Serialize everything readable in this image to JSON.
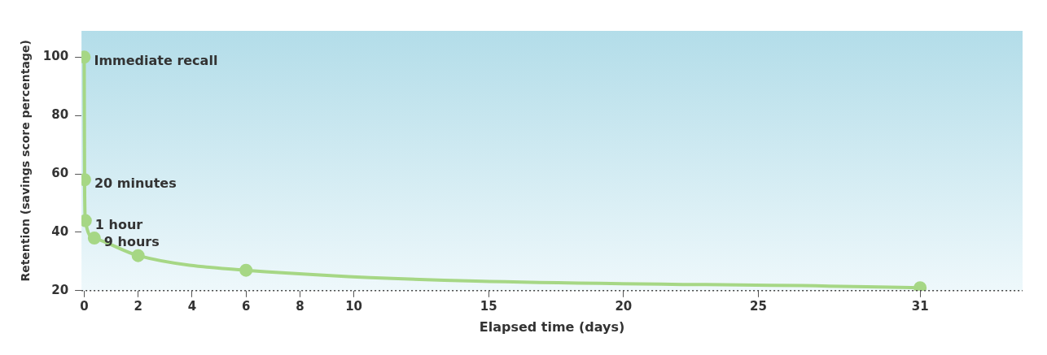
{
  "chart_data": {
    "type": "line",
    "xlabel": "Elapsed time (days)",
    "ylabel": "Retention (savings score percentage)",
    "x": [
      0,
      0.014,
      0.042,
      0.375,
      2,
      6,
      31
    ],
    "series": [
      {
        "color": "#a6d785",
        "values": [
          100,
          58,
          44,
          38,
          32,
          27,
          21
        ]
      }
    ],
    "xlim": [
      -0.1,
      34.8
    ],
    "xticks": [
      0,
      2,
      4,
      6,
      8,
      10,
      15,
      20,
      25,
      31
    ],
    "ylim": [
      20,
      109
    ],
    "yticks": [
      20,
      40,
      60,
      80,
      100
    ],
    "grid": false,
    "legend": false,
    "marker": "circle",
    "line_style": "solid",
    "annotations": [
      {
        "text": "Immediate recall",
        "x": 0,
        "y": 100
      },
      {
        "text": "20 minutes",
        "x": 0.014,
        "y": 58
      },
      {
        "text": "1 hour",
        "x": 0.042,
        "y": 44
      },
      {
        "text": "9 hours",
        "x": 0.375,
        "y": 38
      }
    ]
  }
}
